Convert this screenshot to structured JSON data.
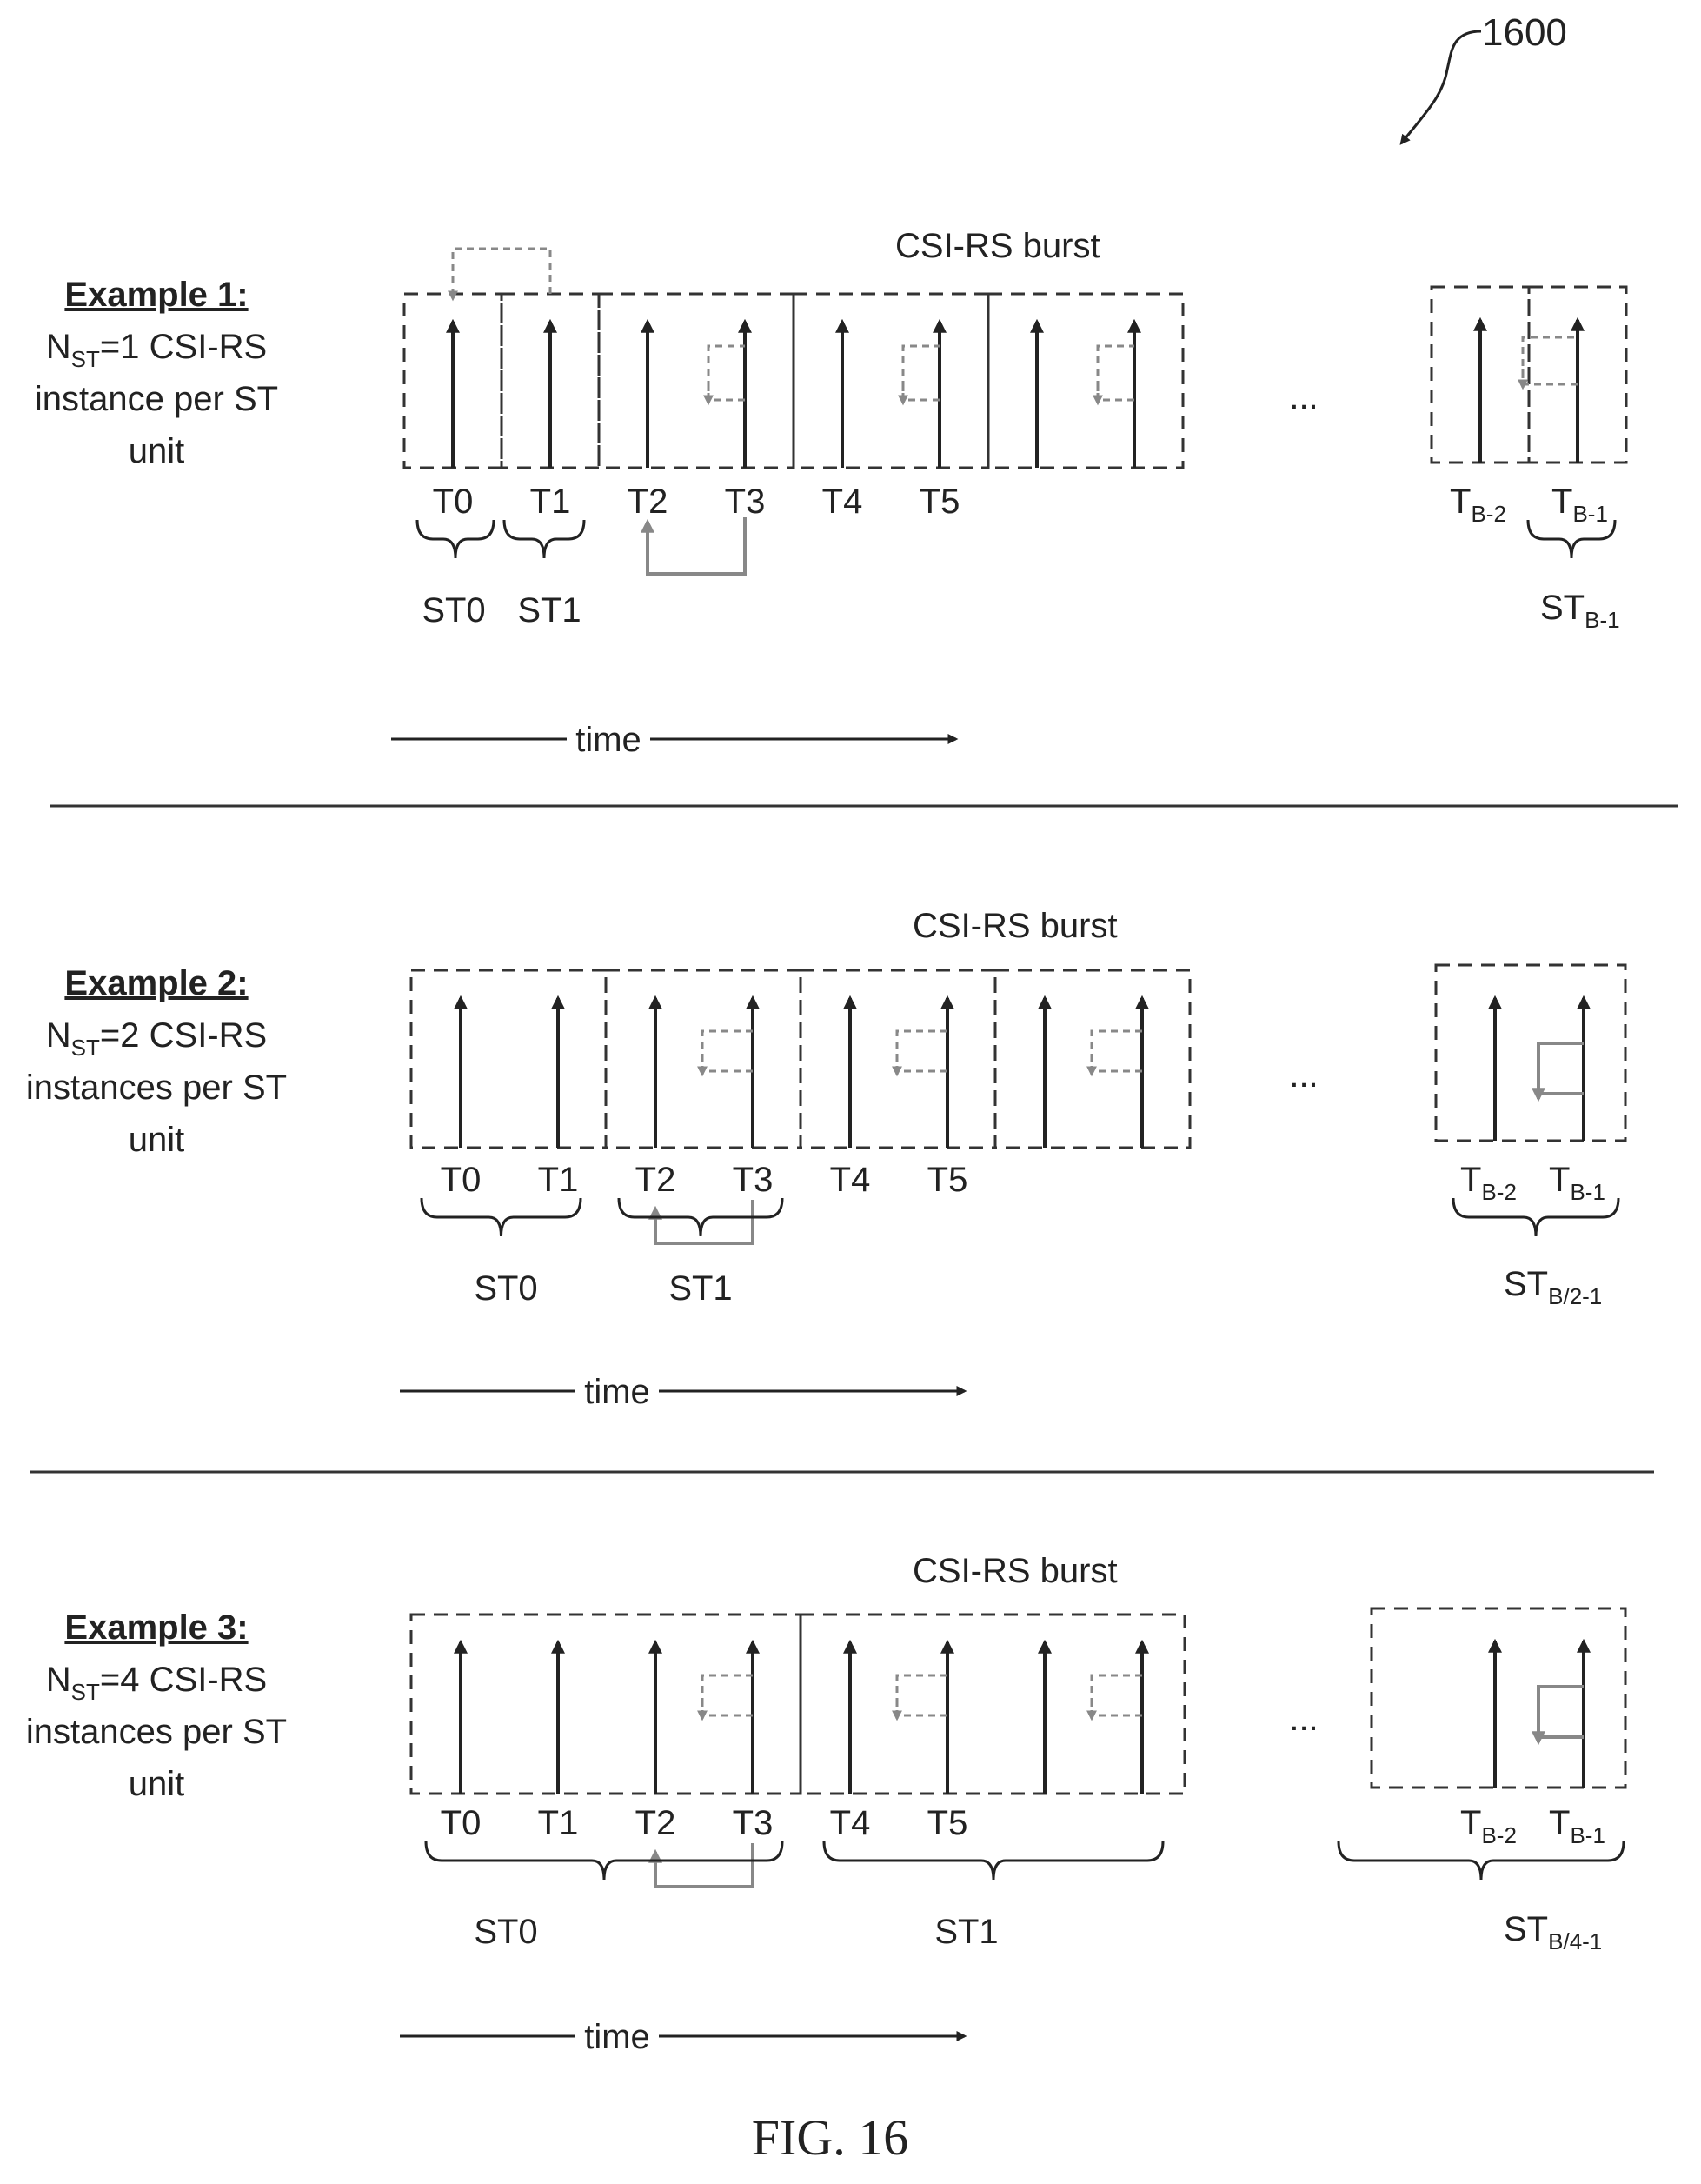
{
  "figure_ref": "1600",
  "caption": "FIG. 16",
  "ellipsis": "...",
  "time_label": "time",
  "burst_label": "CSI-RS burst",
  "examples": [
    {
      "title": "Example 1:",
      "n_prefix": "N",
      "n_sub": "ST",
      "n_rest": "=1 CSI-RS",
      "line2": "instance per ST",
      "line3": "unit",
      "t_labels": [
        "T0",
        "T1",
        "T2",
        "T3",
        "T4",
        "T5"
      ],
      "tail_labels": [
        {
          "main": "T",
          "sub": "B-2"
        },
        {
          "main": "T",
          "sub": "B-1"
        }
      ],
      "st_labels": [
        "ST0",
        "ST1"
      ],
      "st_tail": {
        "main": "ST",
        "sub": "B-1"
      }
    },
    {
      "title": "Example 2:",
      "n_prefix": "N",
      "n_sub": "ST",
      "n_rest": "=2 CSI-RS",
      "line2": "instances per ST",
      "line3": "unit",
      "t_labels": [
        "T0",
        "T1",
        "T2",
        "T3",
        "T4",
        "T5"
      ],
      "tail_labels": [
        {
          "main": "T",
          "sub": "B-2"
        },
        {
          "main": "T",
          "sub": "B-1"
        }
      ],
      "st_labels": [
        "ST0",
        "ST1"
      ],
      "st_tail": {
        "main": "ST",
        "sub": "B/2-1"
      }
    },
    {
      "title": "Example 3:",
      "n_prefix": "N",
      "n_sub": "ST",
      "n_rest": "=4 CSI-RS",
      "line2": "instances per ST",
      "line3": "unit",
      "t_labels": [
        "T0",
        "T1",
        "T2",
        "T3",
        "T4",
        "T5"
      ],
      "tail_labels": [
        {
          "main": "T",
          "sub": "B-2"
        },
        {
          "main": "T",
          "sub": "B-1"
        }
      ],
      "st_labels": [
        "ST0",
        "ST1"
      ],
      "st_tail": {
        "main": "ST",
        "sub": "B/4-1"
      }
    }
  ]
}
